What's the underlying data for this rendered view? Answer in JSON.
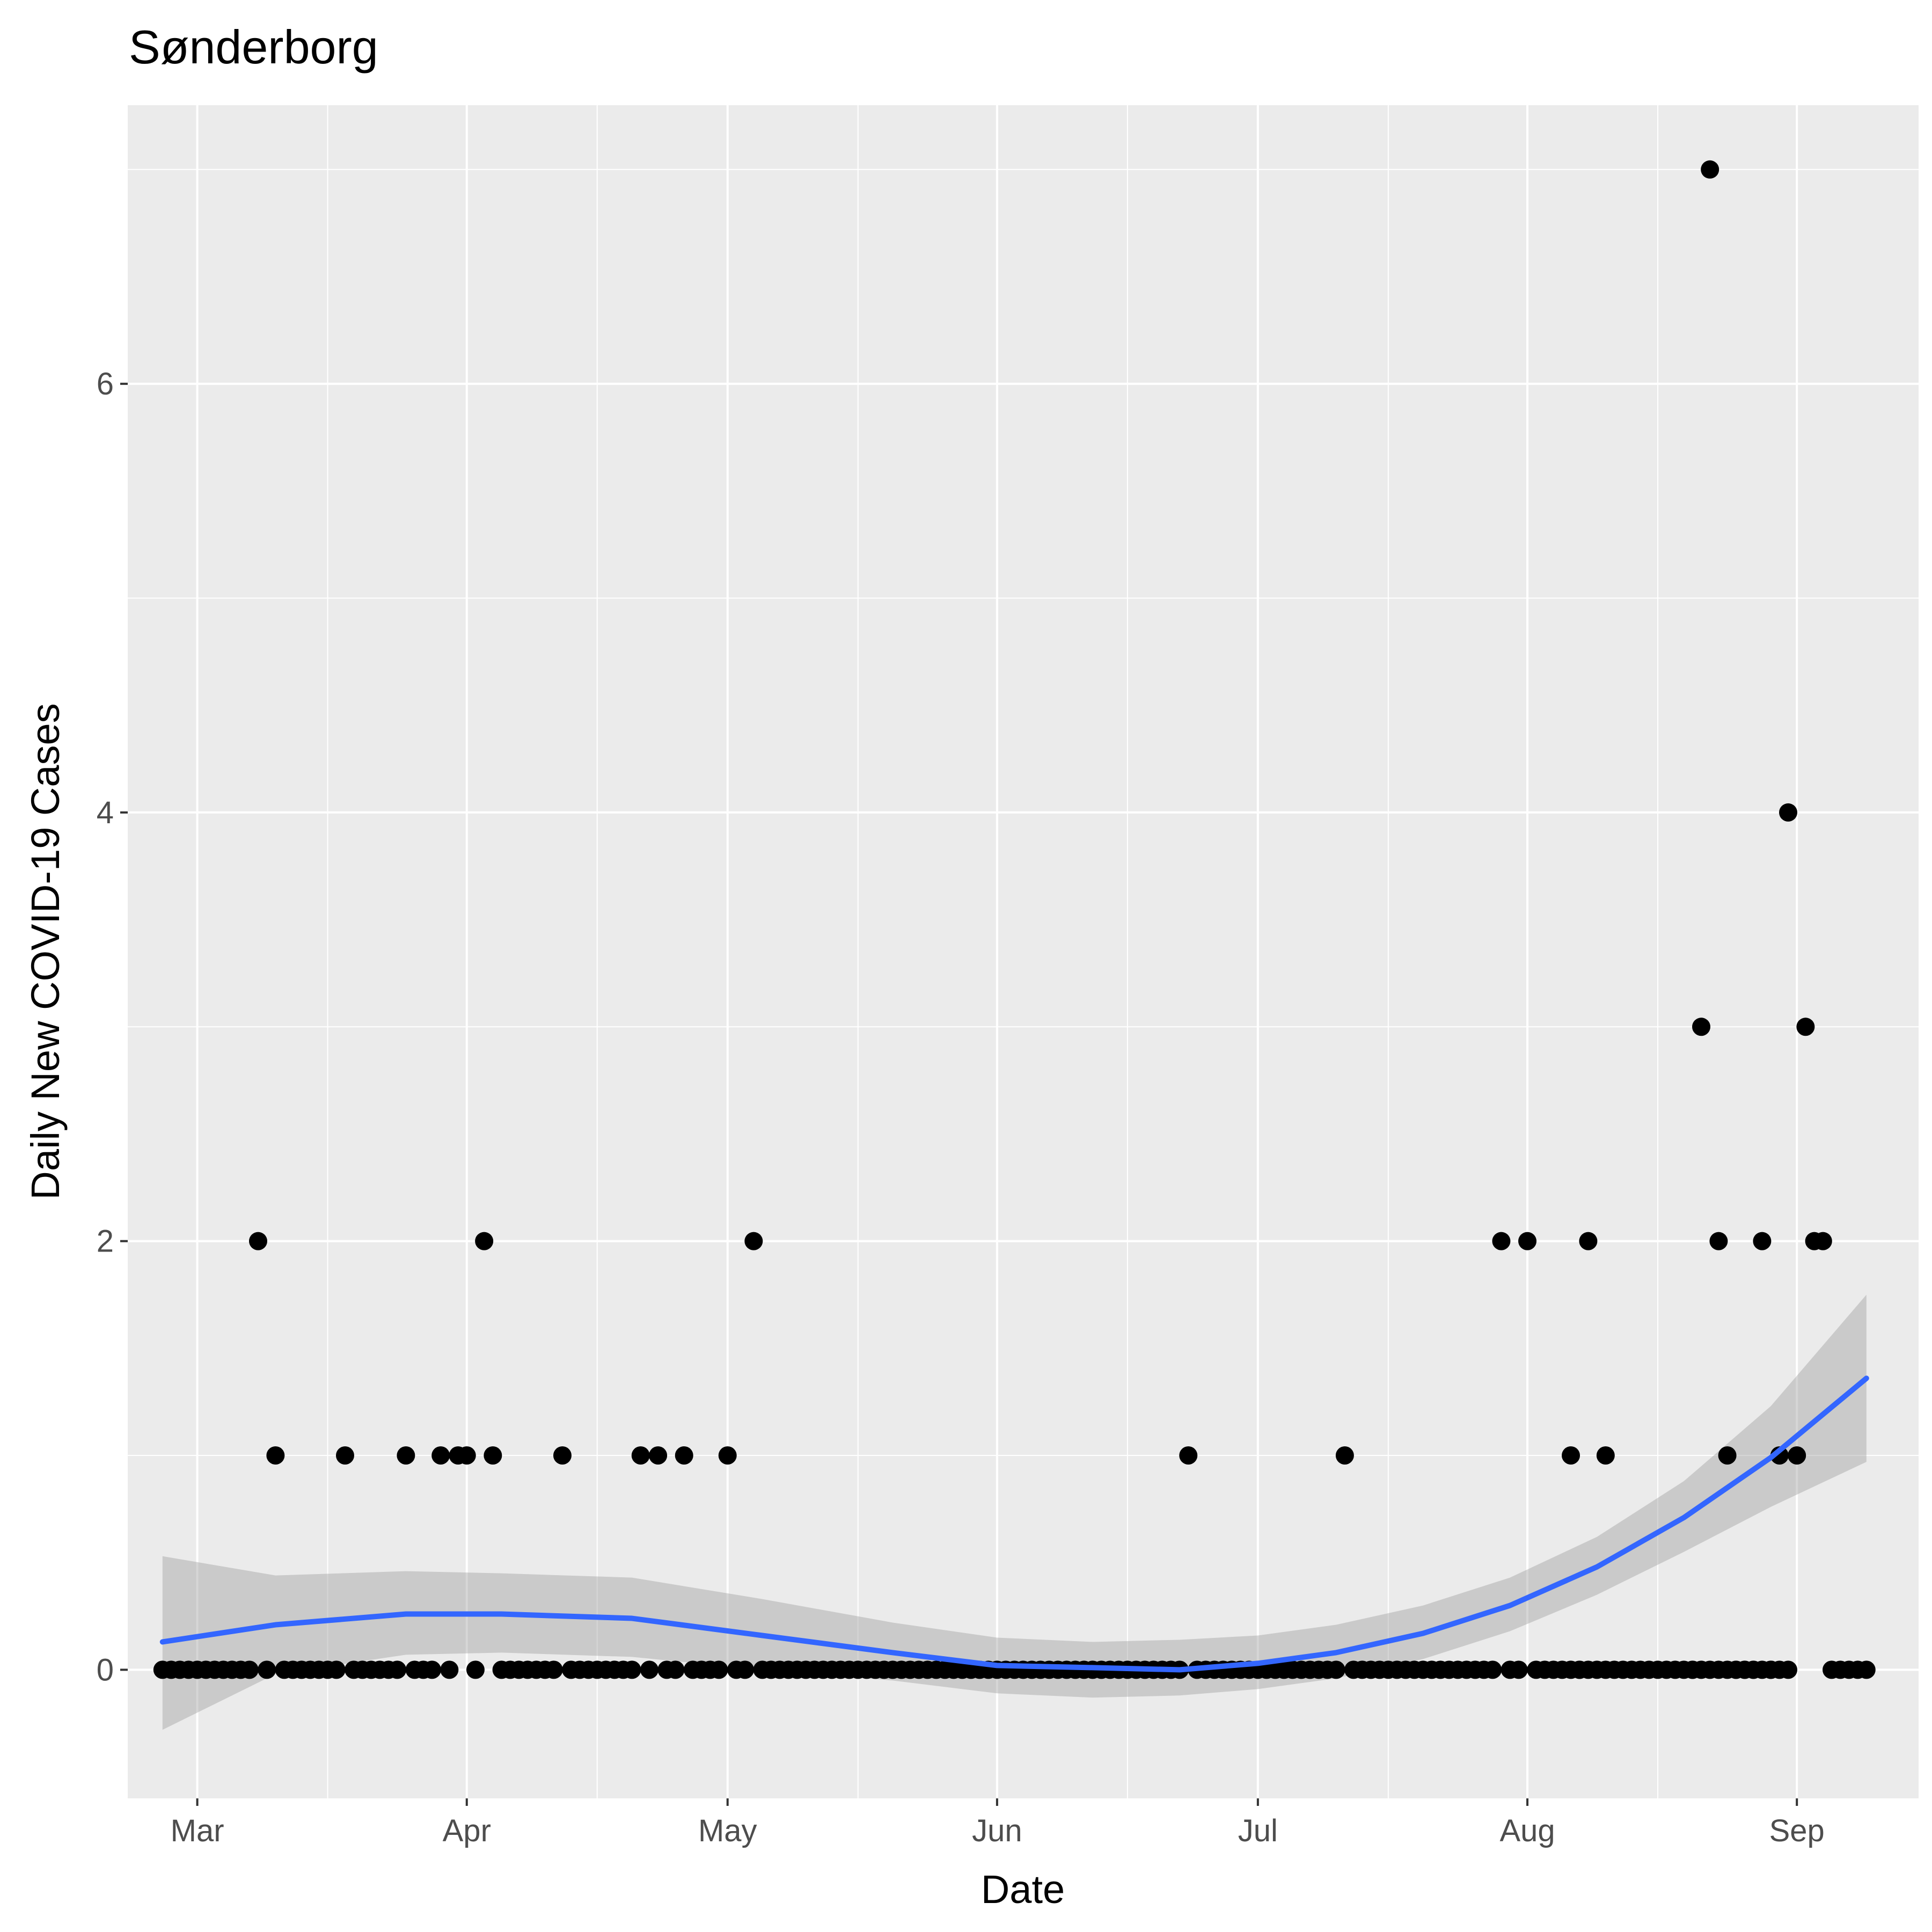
{
  "chart_data": {
    "type": "scatter",
    "title": "Sønderborg",
    "xlabel": "Date",
    "ylabel": "Daily New COVID-19 Cases",
    "x_ticks": [
      "Mar",
      "Apr",
      "May",
      "Jun",
      "Jul",
      "Aug",
      "Sep"
    ],
    "y_ticks": [
      "0",
      "2",
      "4",
      "6"
    ],
    "xlim": [
      "2020-02-22",
      "2020-09-15"
    ],
    "ylim": [
      -0.6,
      7.3
    ],
    "grid": true,
    "series": [
      {
        "points": [
          [
            "2020-02-26",
            0
          ],
          [
            "2020-02-27",
            0
          ],
          [
            "2020-02-28",
            0
          ],
          [
            "2020-02-29",
            0
          ],
          [
            "2020-03-01",
            0
          ],
          [
            "2020-03-02",
            0
          ],
          [
            "2020-03-03",
            0
          ],
          [
            "2020-03-04",
            0
          ],
          [
            "2020-03-05",
            0
          ],
          [
            "2020-03-06",
            0
          ],
          [
            "2020-03-07",
            0
          ],
          [
            "2020-03-08",
            2
          ],
          [
            "2020-03-09",
            0
          ],
          [
            "2020-03-10",
            1
          ],
          [
            "2020-03-11",
            0
          ],
          [
            "2020-03-12",
            0
          ],
          [
            "2020-03-13",
            0
          ],
          [
            "2020-03-14",
            0
          ],
          [
            "2020-03-15",
            0
          ],
          [
            "2020-03-16",
            0
          ],
          [
            "2020-03-17",
            0
          ],
          [
            "2020-03-18",
            1
          ],
          [
            "2020-03-19",
            0
          ],
          [
            "2020-03-20",
            0
          ],
          [
            "2020-03-21",
            0
          ],
          [
            "2020-03-22",
            0
          ],
          [
            "2020-03-23",
            0
          ],
          [
            "2020-03-24",
            0
          ],
          [
            "2020-03-25",
            1
          ],
          [
            "2020-03-26",
            0
          ],
          [
            "2020-03-27",
            0
          ],
          [
            "2020-03-28",
            0
          ],
          [
            "2020-03-29",
            1
          ],
          [
            "2020-03-30",
            0
          ],
          [
            "2020-03-31",
            1
          ],
          [
            "2020-04-01",
            1
          ],
          [
            "2020-04-02",
            0
          ],
          [
            "2020-04-03",
            2
          ],
          [
            "2020-04-04",
            1
          ],
          [
            "2020-04-05",
            0
          ],
          [
            "2020-04-06",
            0
          ],
          [
            "2020-04-07",
            0
          ],
          [
            "2020-04-08",
            0
          ],
          [
            "2020-04-09",
            0
          ],
          [
            "2020-04-10",
            0
          ],
          [
            "2020-04-11",
            0
          ],
          [
            "2020-04-12",
            1
          ],
          [
            "2020-04-13",
            0
          ],
          [
            "2020-04-14",
            0
          ],
          [
            "2020-04-15",
            0
          ],
          [
            "2020-04-16",
            0
          ],
          [
            "2020-04-17",
            0
          ],
          [
            "2020-04-18",
            0
          ],
          [
            "2020-04-19",
            0
          ],
          [
            "2020-04-20",
            0
          ],
          [
            "2020-04-21",
            1
          ],
          [
            "2020-04-22",
            0
          ],
          [
            "2020-04-23",
            1
          ],
          [
            "2020-04-24",
            0
          ],
          [
            "2020-04-25",
            0
          ],
          [
            "2020-04-26",
            1
          ],
          [
            "2020-04-27",
            0
          ],
          [
            "2020-04-28",
            0
          ],
          [
            "2020-04-29",
            0
          ],
          [
            "2020-04-30",
            0
          ],
          [
            "2020-05-01",
            1
          ],
          [
            "2020-05-02",
            0
          ],
          [
            "2020-05-03",
            0
          ],
          [
            "2020-05-04",
            2
          ],
          [
            "2020-05-05",
            0
          ],
          [
            "2020-05-06",
            0
          ],
          [
            "2020-05-07",
            0
          ],
          [
            "2020-05-08",
            0
          ],
          [
            "2020-05-09",
            0
          ],
          [
            "2020-05-10",
            0
          ],
          [
            "2020-05-11",
            0
          ],
          [
            "2020-05-12",
            0
          ],
          [
            "2020-05-13",
            0
          ],
          [
            "2020-05-14",
            0
          ],
          [
            "2020-05-15",
            0
          ],
          [
            "2020-05-16",
            0
          ],
          [
            "2020-05-17",
            0
          ],
          [
            "2020-05-18",
            0
          ],
          [
            "2020-05-19",
            0
          ],
          [
            "2020-05-20",
            0
          ],
          [
            "2020-05-21",
            0
          ],
          [
            "2020-05-22",
            0
          ],
          [
            "2020-05-23",
            0
          ],
          [
            "2020-05-24",
            0
          ],
          [
            "2020-05-25",
            0
          ],
          [
            "2020-05-26",
            0
          ],
          [
            "2020-05-27",
            0
          ],
          [
            "2020-05-28",
            0
          ],
          [
            "2020-05-29",
            0
          ],
          [
            "2020-05-30",
            0
          ],
          [
            "2020-05-31",
            0
          ],
          [
            "2020-06-01",
            0
          ],
          [
            "2020-06-02",
            0
          ],
          [
            "2020-06-03",
            0
          ],
          [
            "2020-06-04",
            0
          ],
          [
            "2020-06-05",
            0
          ],
          [
            "2020-06-06",
            0
          ],
          [
            "2020-06-07",
            0
          ],
          [
            "2020-06-08",
            0
          ],
          [
            "2020-06-09",
            0
          ],
          [
            "2020-06-10",
            0
          ],
          [
            "2020-06-11",
            0
          ],
          [
            "2020-06-12",
            0
          ],
          [
            "2020-06-13",
            0
          ],
          [
            "2020-06-14",
            0
          ],
          [
            "2020-06-15",
            0
          ],
          [
            "2020-06-16",
            0
          ],
          [
            "2020-06-17",
            0
          ],
          [
            "2020-06-18",
            0
          ],
          [
            "2020-06-19",
            0
          ],
          [
            "2020-06-20",
            0
          ],
          [
            "2020-06-21",
            0
          ],
          [
            "2020-06-22",
            0
          ],
          [
            "2020-06-23",
            1
          ],
          [
            "2020-06-24",
            0
          ],
          [
            "2020-06-25",
            0
          ],
          [
            "2020-06-26",
            0
          ],
          [
            "2020-06-27",
            0
          ],
          [
            "2020-06-28",
            0
          ],
          [
            "2020-06-29",
            0
          ],
          [
            "2020-06-30",
            0
          ],
          [
            "2020-07-01",
            0
          ],
          [
            "2020-07-02",
            0
          ],
          [
            "2020-07-03",
            0
          ],
          [
            "2020-07-04",
            0
          ],
          [
            "2020-07-05",
            0
          ],
          [
            "2020-07-06",
            0
          ],
          [
            "2020-07-07",
            0
          ],
          [
            "2020-07-08",
            0
          ],
          [
            "2020-07-09",
            0
          ],
          [
            "2020-07-10",
            0
          ],
          [
            "2020-07-11",
            1
          ],
          [
            "2020-07-12",
            0
          ],
          [
            "2020-07-13",
            0
          ],
          [
            "2020-07-14",
            0
          ],
          [
            "2020-07-15",
            0
          ],
          [
            "2020-07-16",
            0
          ],
          [
            "2020-07-17",
            0
          ],
          [
            "2020-07-18",
            0
          ],
          [
            "2020-07-19",
            0
          ],
          [
            "2020-07-20",
            0
          ],
          [
            "2020-07-21",
            0
          ],
          [
            "2020-07-22",
            0
          ],
          [
            "2020-07-23",
            0
          ],
          [
            "2020-07-24",
            0
          ],
          [
            "2020-07-25",
            0
          ],
          [
            "2020-07-26",
            0
          ],
          [
            "2020-07-27",
            0
          ],
          [
            "2020-07-28",
            0
          ],
          [
            "2020-07-29",
            2
          ],
          [
            "2020-07-30",
            0
          ],
          [
            "2020-07-31",
            0
          ],
          [
            "2020-08-01",
            2
          ],
          [
            "2020-08-02",
            0
          ],
          [
            "2020-08-03",
            0
          ],
          [
            "2020-08-04",
            0
          ],
          [
            "2020-08-05",
            0
          ],
          [
            "2020-08-06",
            0
          ],
          [
            "2020-08-07",
            0
          ],
          [
            "2020-08-08",
            0
          ],
          [
            "2020-08-09",
            0
          ],
          [
            "2020-08-10",
            0
          ],
          [
            "2020-08-11",
            0
          ],
          [
            "2020-08-12",
            0
          ],
          [
            "2020-08-13",
            0
          ],
          [
            "2020-08-14",
            0
          ],
          [
            "2020-08-15",
            0
          ],
          [
            "2020-08-16",
            0
          ],
          [
            "2020-08-17",
            0
          ],
          [
            "2020-08-18",
            0
          ],
          [
            "2020-08-19",
            0
          ],
          [
            "2020-08-20",
            0
          ],
          [
            "2020-08-21",
            0
          ],
          [
            "2020-08-22",
            0
          ],
          [
            "2020-08-23",
            0
          ],
          [
            "2020-08-24",
            0
          ],
          [
            "2020-08-25",
            0
          ],
          [
            "2020-08-26",
            0
          ],
          [
            "2020-08-27",
            0
          ],
          [
            "2020-08-28",
            0
          ],
          [
            "2020-08-29",
            0
          ],
          [
            "2020-08-30",
            0
          ],
          [
            "2020-08-31",
            0
          ],
          [
            "2020-08-06",
            1
          ],
          [
            "2020-08-07",
            0
          ],
          [
            "2020-08-08",
            2
          ],
          [
            "2020-08-10",
            1
          ],
          [
            "2020-08-20",
            0
          ],
          [
            "2020-08-21",
            3
          ],
          [
            "2020-08-22",
            7
          ],
          [
            "2020-08-23",
            2
          ],
          [
            "2020-08-24",
            1
          ],
          [
            "2020-08-25",
            0
          ],
          [
            "2020-08-26",
            0
          ],
          [
            "2020-08-27",
            0
          ],
          [
            "2020-08-28",
            2
          ],
          [
            "2020-08-29",
            0
          ],
          [
            "2020-08-30",
            1
          ],
          [
            "2020-08-31",
            4
          ],
          [
            "2020-09-01",
            1
          ],
          [
            "2020-09-02",
            3
          ],
          [
            "2020-09-03",
            2
          ],
          [
            "2020-09-04",
            2
          ],
          [
            "2020-09-05",
            0
          ],
          [
            "2020-09-06",
            0
          ],
          [
            "2020-09-07",
            0
          ],
          [
            "2020-09-08",
            0
          ],
          [
            "2020-09-09",
            0
          ]
        ]
      }
    ],
    "smooth_fit": {
      "points": [
        [
          "2020-02-26",
          0.13
        ],
        [
          "2020-03-10",
          0.21
        ],
        [
          "2020-03-25",
          0.26
        ],
        [
          "2020-04-05",
          0.26
        ],
        [
          "2020-04-20",
          0.24
        ],
        [
          "2020-05-05",
          0.16
        ],
        [
          "2020-05-20",
          0.08
        ],
        [
          "2020-06-01",
          0.02
        ],
        [
          "2020-06-12",
          0.01
        ],
        [
          "2020-06-22",
          0.0
        ],
        [
          "2020-07-01",
          0.03
        ],
        [
          "2020-07-10",
          0.08
        ],
        [
          "2020-07-20",
          0.17
        ],
        [
          "2020-07-30",
          0.3
        ],
        [
          "2020-08-09",
          0.48
        ],
        [
          "2020-08-19",
          0.71
        ],
        [
          "2020-08-29",
          0.99
        ],
        [
          "2020-09-09",
          1.36
        ]
      ],
      "ci_lower": [
        [
          "2020-02-26",
          -0.28
        ],
        [
          "2020-03-10",
          -0.02
        ],
        [
          "2020-03-25",
          0.07
        ],
        [
          "2020-04-05",
          0.08
        ],
        [
          "2020-04-20",
          0.06
        ],
        [
          "2020-05-05",
          0.0
        ],
        [
          "2020-05-20",
          -0.05
        ],
        [
          "2020-06-01",
          -0.11
        ],
        [
          "2020-06-12",
          -0.13
        ],
        [
          "2020-06-22",
          -0.12
        ],
        [
          "2020-07-01",
          -0.09
        ],
        [
          "2020-07-10",
          -0.04
        ],
        [
          "2020-07-20",
          0.05
        ],
        [
          "2020-07-30",
          0.18
        ],
        [
          "2020-08-09",
          0.35
        ],
        [
          "2020-08-19",
          0.55
        ],
        [
          "2020-08-29",
          0.76
        ],
        [
          "2020-09-09",
          0.97
        ]
      ],
      "ci_upper": [
        [
          "2020-02-26",
          0.53
        ],
        [
          "2020-03-10",
          0.44
        ],
        [
          "2020-03-25",
          0.46
        ],
        [
          "2020-04-05",
          0.45
        ],
        [
          "2020-04-20",
          0.43
        ],
        [
          "2020-05-05",
          0.33
        ],
        [
          "2020-05-20",
          0.22
        ],
        [
          "2020-06-01",
          0.15
        ],
        [
          "2020-06-12",
          0.13
        ],
        [
          "2020-06-22",
          0.14
        ],
        [
          "2020-07-01",
          0.16
        ],
        [
          "2020-07-10",
          0.21
        ],
        [
          "2020-07-20",
          0.3
        ],
        [
          "2020-07-30",
          0.43
        ],
        [
          "2020-08-09",
          0.62
        ],
        [
          "2020-08-19",
          0.88
        ],
        [
          "2020-08-29",
          1.23
        ],
        [
          "2020-09-09",
          1.75
        ]
      ]
    },
    "colors": {
      "panel_background": "#ebebeb",
      "grid_major": "#ffffff",
      "points": "#000000",
      "smooth_line": "#3366ff",
      "ci_band": "#999999"
    }
  }
}
